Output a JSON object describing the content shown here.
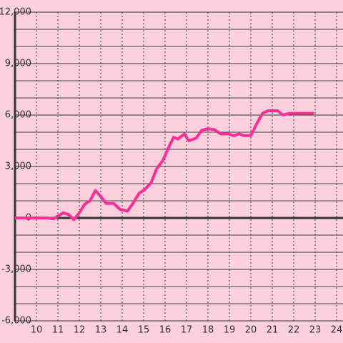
{
  "chart_data": {
    "type": "line",
    "x": [
      9,
      10,
      10.5,
      10.8,
      11.25,
      11.5,
      11.75,
      12,
      12.25,
      12.5,
      12.75,
      13,
      13.25,
      13.6,
      13.9,
      14.25,
      14.5,
      14.8,
      15.05,
      15.35,
      15.6,
      15.9,
      16.2,
      16.4,
      16.6,
      16.9,
      17.1,
      17.45,
      17.7,
      18,
      18.3,
      18.6,
      18.95,
      19.2,
      19.45,
      19.7,
      20,
      20.3,
      20.55,
      20.8,
      21.25,
      21.5,
      21.8,
      22.95
    ],
    "series": [
      {
        "color": "#ff2d96",
        "values": [
          0,
          0,
          0,
          -50,
          300,
          200,
          -100,
          300,
          800,
          1000,
          1600,
          1250,
          850,
          850,
          500,
          400,
          850,
          1450,
          1650,
          2050,
          2850,
          3350,
          4200,
          4700,
          4600,
          4900,
          4500,
          4650,
          5100,
          5200,
          5150,
          4900,
          4900,
          4800,
          4900,
          4800,
          4800,
          5550,
          6100,
          6250,
          6250,
          6000,
          6100,
          6100
        ]
      }
    ],
    "xlim": [
      9,
      24.3
    ],
    "xticks": [
      10,
      11,
      12,
      13,
      14,
      15,
      16,
      17,
      18,
      19,
      20,
      21,
      22,
      23,
      24
    ],
    "ylim": [
      -6000,
      12000
    ],
    "yticks": [
      {
        "value": -6000,
        "label": "-6,000"
      },
      {
        "value": -3000,
        "label": "-3,000"
      },
      0,
      {
        "value": 3000,
        "label": "3,000"
      },
      {
        "value": 6000,
        "label": "6,000"
      },
      {
        "value": 9000,
        "label": "9,000"
      },
      {
        "value": 12000,
        "label": "12,000"
      }
    ],
    "grid": true
  }
}
